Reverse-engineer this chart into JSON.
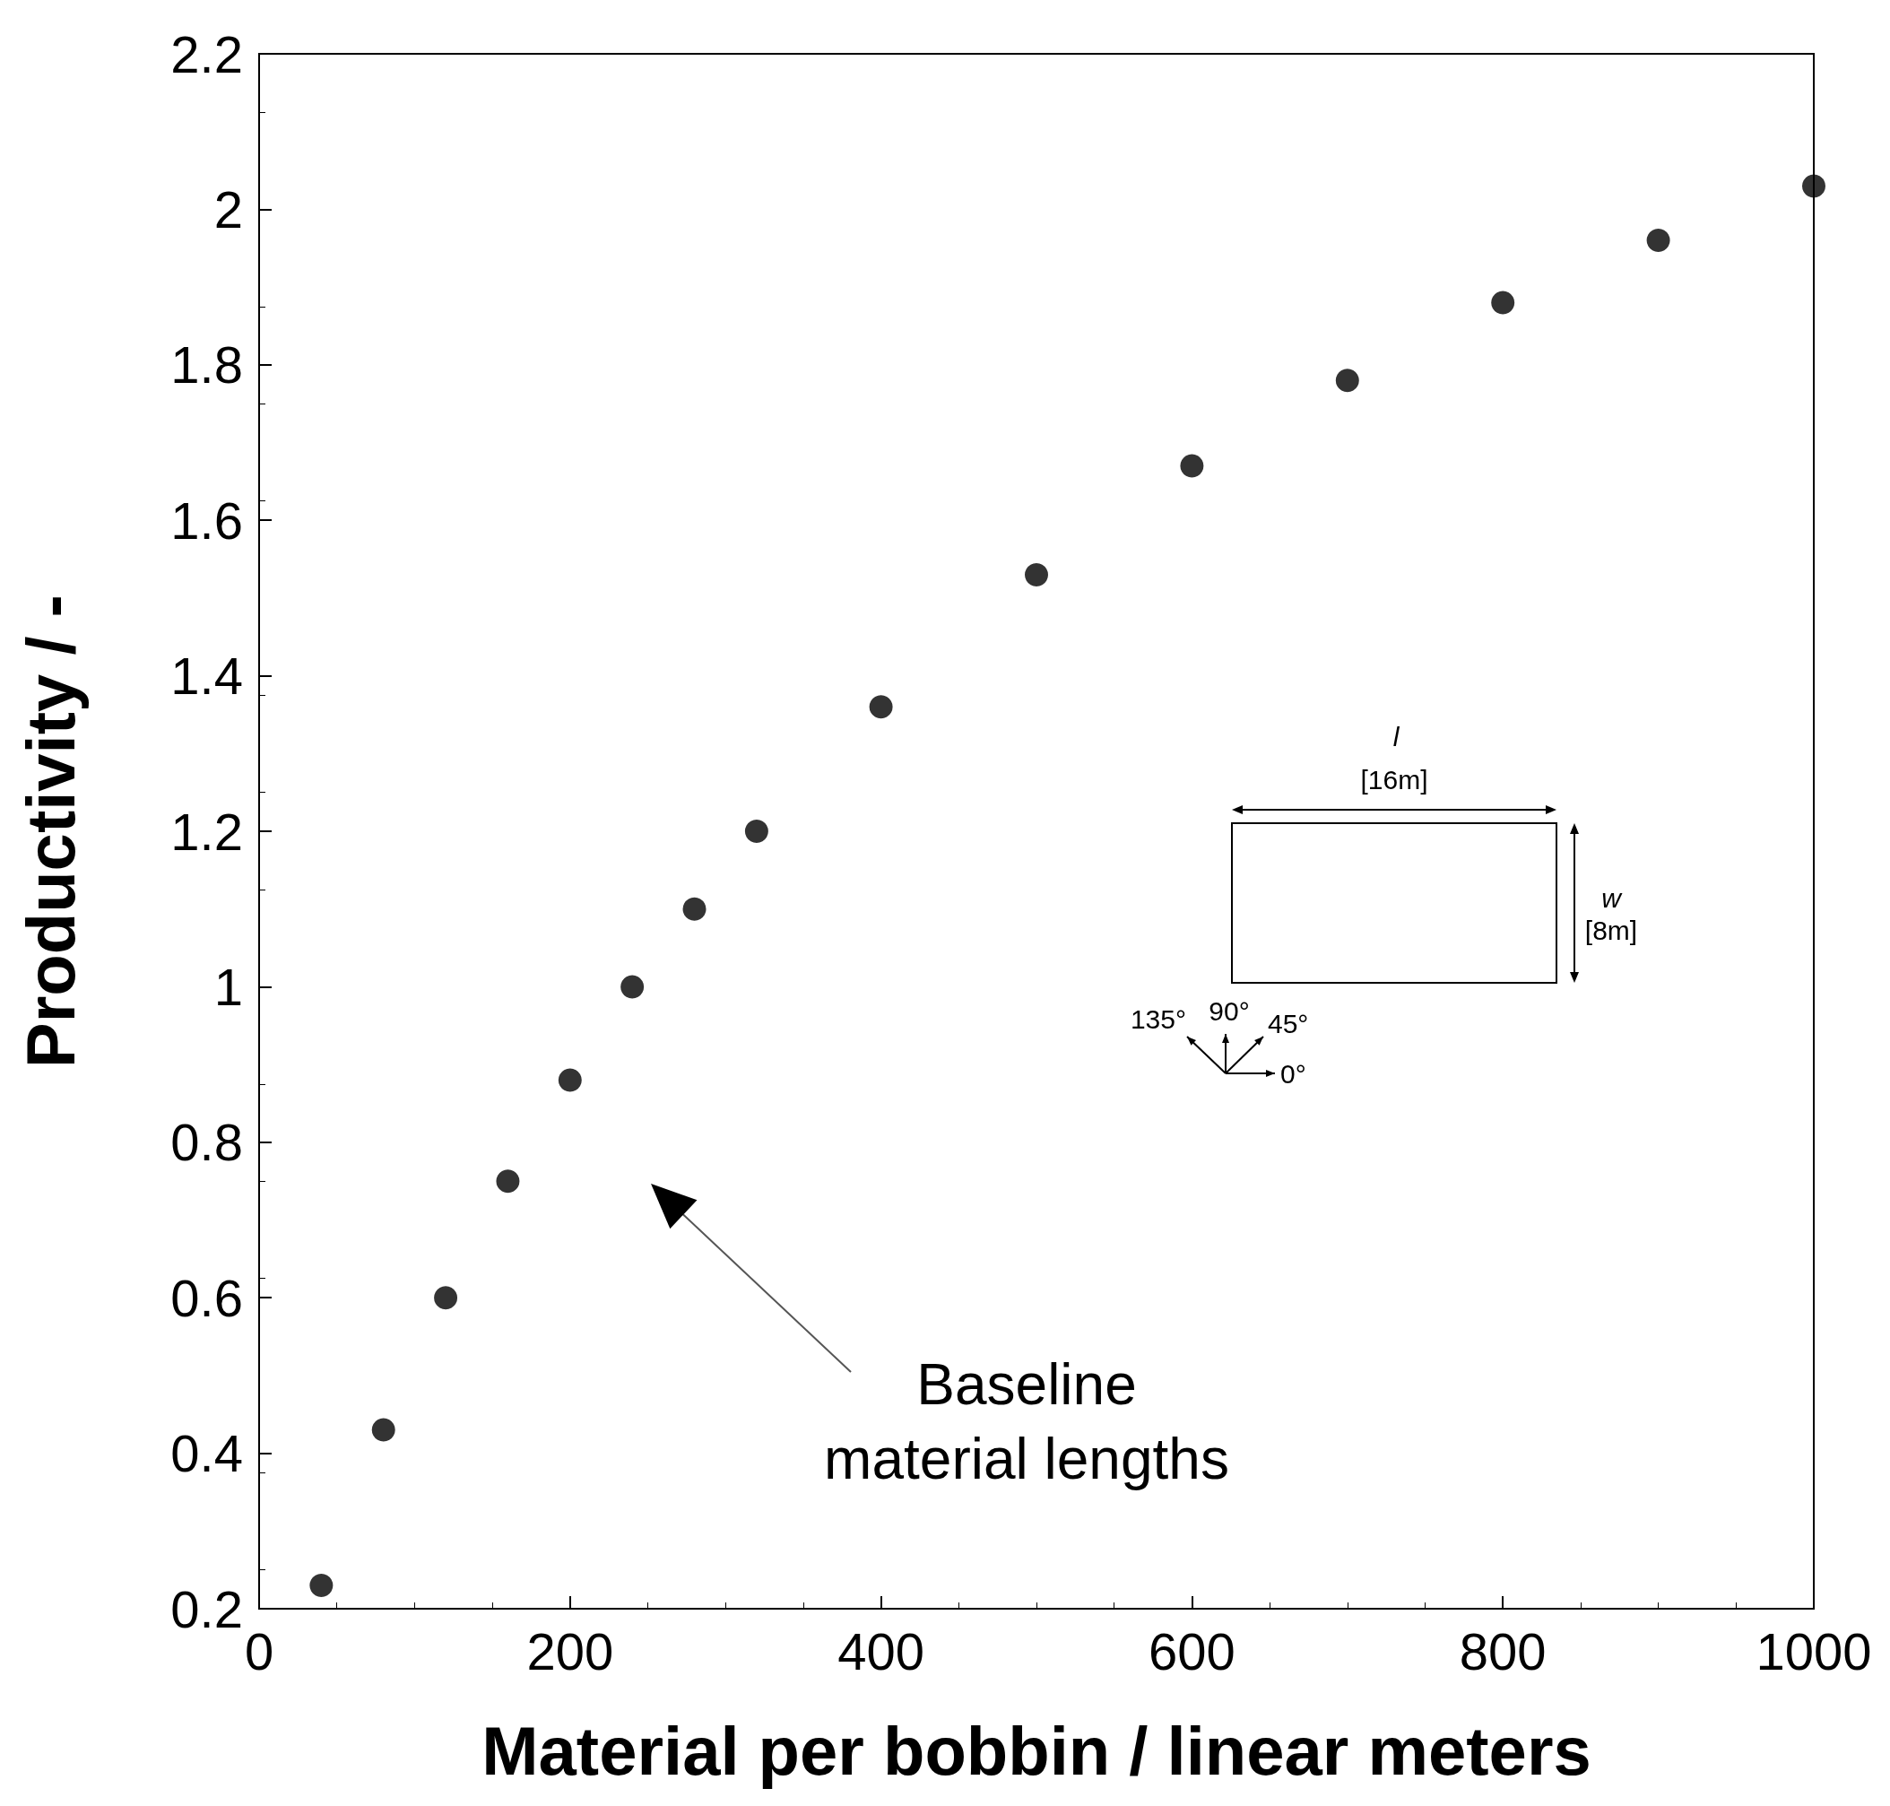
{
  "chart_data": {
    "type": "scatter",
    "xlabel": "Material per bobbin / linear meters",
    "ylabel": "Productivity / -",
    "x": [
      40,
      80,
      120,
      160,
      200,
      240,
      280,
      320,
      400,
      500,
      600,
      700,
      800,
      900,
      1000
    ],
    "series": [
      {
        "color": "#000000",
        "values": [
          0.23,
          0.43,
          0.6,
          0.75,
          0.88,
          1.0,
          1.1,
          1.2,
          1.36,
          1.53,
          1.67,
          1.78,
          1.88,
          1.96,
          2.03
        ]
      }
    ],
    "xlim": [
      0,
      1000
    ],
    "xticks": [
      0,
      200,
      400,
      600,
      800,
      1000
    ],
    "ylim": [
      0.2,
      2.2
    ],
    "yticks": [
      0.2,
      0.4,
      0.6,
      0.8,
      1,
      1.2,
      1.4,
      1.6,
      1.8,
      2,
      2.2
    ],
    "marker": "circle",
    "grid": false,
    "annotations": [
      "Baseline\nmaterial lengths",
      "l",
      "[16m]",
      "w",
      "[8m]",
      "135°",
      "90°",
      "45°",
      "0°"
    ]
  }
}
